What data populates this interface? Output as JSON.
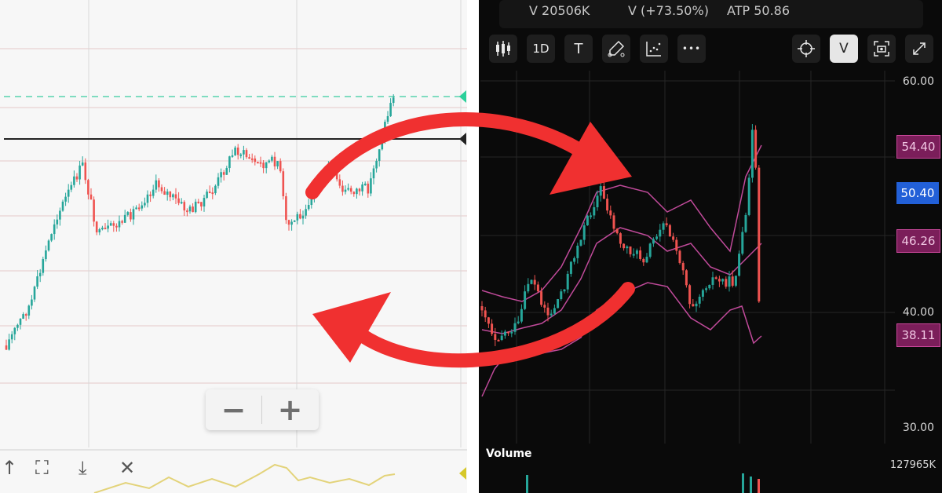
{
  "left_panel": {
    "zoom_out_label": "−",
    "zoom_in_label": "+",
    "bottom_icons": [
      "trend-icon",
      "fullscreen-icon",
      "download-icon",
      "close-icon"
    ]
  },
  "right_panel": {
    "stats": [
      {
        "label": "V 20506K"
      },
      {
        "label": "V (+73.50%)"
      },
      {
        "label": "ATP 50.86"
      }
    ],
    "toolbar": [
      {
        "name": "candles-icon",
        "label": ""
      },
      {
        "name": "interval-1d-button",
        "label": "1D"
      },
      {
        "name": "text-tool-button",
        "label": "T"
      },
      {
        "name": "draw-tool-icon",
        "label": ""
      },
      {
        "name": "indicator-icon",
        "label": ""
      },
      {
        "name": "more-icon",
        "label": "•••"
      }
    ],
    "toolbar_right": [
      {
        "name": "crosshair-icon",
        "label": ""
      },
      {
        "name": "volume-toggle-button",
        "label": "V"
      },
      {
        "name": "screenshot-icon",
        "label": ""
      },
      {
        "name": "expand-icon",
        "label": ""
      }
    ],
    "price_axis": [
      "60.00",
      "40.00",
      "30.00"
    ],
    "tags": [
      {
        "value": "54.40",
        "style": "pink"
      },
      {
        "value": "50.40",
        "style": "blue"
      },
      {
        "value": "46.26",
        "style": "pink"
      },
      {
        "value": "38.11",
        "style": "pink"
      }
    ],
    "volume_label": "Volume",
    "volume_value": "127965K"
  },
  "colors": {
    "up": "#26a69a",
    "down": "#ef5350",
    "arrow": "#f03030",
    "band": "#c04a9a",
    "dark_bg": "#0a0a0a"
  }
}
